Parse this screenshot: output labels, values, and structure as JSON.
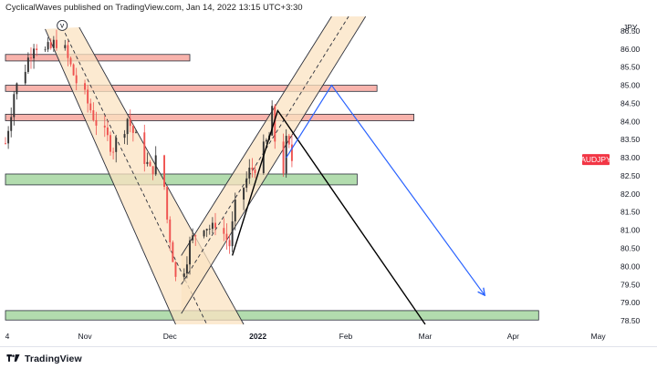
{
  "header": {
    "text": "CyclicalWaves published on TradingView.com, Jan 14, 2022 13:15 UTC+3:30"
  },
  "footer": {
    "brand": "TradingView"
  },
  "chart_data": {
    "type": "candlestick",
    "symbol": "AUDJPY",
    "currency": "JPY",
    "currency_scale_label": "JPY",
    "last_price": 82.95,
    "price_badge_color": "#f23645",
    "ylim": [
      78.3,
      86.9
    ],
    "y_ticks": [
      78.5,
      79.0,
      79.5,
      80.0,
      80.5,
      81.0,
      81.5,
      82.0,
      82.5,
      83.0,
      83.5,
      84.0,
      84.5,
      85.0,
      85.5,
      86.0,
      86.5
    ],
    "x_ticks": [
      {
        "label": "4",
        "date": "2021-10-04"
      },
      {
        "label": "Nov",
        "date": "2021-11-01"
      },
      {
        "label": "Dec",
        "date": "2021-12-01"
      },
      {
        "label": "2022",
        "date": "2022-01-01",
        "bold": true
      },
      {
        "label": "Feb",
        "date": "2022-02-01"
      },
      {
        "label": "Mar",
        "date": "2022-03-01"
      },
      {
        "label": "Apr",
        "date": "2022-04-01"
      },
      {
        "label": "May",
        "date": "2022-05-01"
      }
    ],
    "x_range": [
      "2021-10-04",
      "2022-05-05"
    ],
    "resistance_zones": [
      {
        "from": "2021-10-04",
        "to": "2021-12-08",
        "low": 85.67,
        "high": 85.85,
        "color": "#f7a69e"
      },
      {
        "from": "2021-10-04",
        "to": "2022-02-12",
        "low": 84.83,
        "high": 85.0,
        "color": "#f7a69e"
      },
      {
        "from": "2021-10-04",
        "to": "2022-02-25",
        "low": 84.02,
        "high": 84.2,
        "color": "#f7a69e"
      }
    ],
    "support_zones": [
      {
        "from": "2021-10-04",
        "to": "2022-02-05",
        "low": 82.25,
        "high": 82.55,
        "color": "#a5d6a0"
      },
      {
        "from": "2021-10-04",
        "to": "2022-04-10",
        "low": 78.52,
        "high": 78.78,
        "color": "#a5d6a0"
      }
    ],
    "channels": [
      {
        "fill": "#fbe3c2",
        "outer": [
          {
            "p1": [
              "2021-10-18",
              86.55
            ],
            "p2": [
              "2021-12-03",
              78.4
            ]
          },
          {
            "p1": [
              "2021-10-30",
              86.6
            ],
            "p2": [
              "2021-12-27",
              78.4
            ]
          }
        ],
        "mid": {
          "p1": [
            "2021-10-24",
            86.6
          ],
          "p2": [
            "2021-12-14",
            78.4
          ]
        }
      },
      {
        "fill": "#fbe3c2",
        "outer": [
          {
            "p1": [
              "2021-12-05",
              80.3
            ],
            "p2": [
              "2022-01-27",
              86.9
            ]
          },
          {
            "p1": [
              "2021-12-05",
              78.7
            ],
            "p2": [
              "2022-02-08",
              86.9
            ]
          }
        ],
        "mid": {
          "p1": [
            "2021-12-05",
            79.5
          ],
          "p2": [
            "2022-02-02",
            86.9
          ]
        }
      }
    ],
    "projections": [
      {
        "color": "#000000",
        "points": [
          [
            "2021-12-23",
            80.3
          ],
          [
            "2022-01-08",
            84.3
          ],
          [
            "2022-03-01",
            78.4
          ]
        ]
      },
      {
        "color": "#2962ff",
        "points": [
          [
            "2022-01-11",
            83.0
          ],
          [
            "2022-01-27",
            85.0
          ],
          [
            "2022-03-22",
            79.2
          ]
        ],
        "arrow": true
      }
    ],
    "markers": [
      {
        "label": "v",
        "date": "2021-10-24",
        "price": 86.65
      }
    ],
    "candles": {
      "up_color": "#333333",
      "down_color": "#ef5350",
      "anchors": [
        [
          "2021-10-04",
          83.4
        ],
        [
          "2021-10-07",
          84.8
        ],
        [
          "2021-10-11",
          85.5
        ],
        [
          "2021-10-14",
          86.2
        ],
        [
          "2021-10-18",
          85.9
        ],
        [
          "2021-10-20",
          86.0
        ],
        [
          "2021-10-23",
          86.35
        ],
        [
          "2021-10-26",
          85.7
        ],
        [
          "2021-10-29",
          85.1
        ],
        [
          "2021-11-02",
          84.5
        ],
        [
          "2021-11-05",
          84.0
        ],
        [
          "2021-11-08",
          83.6
        ],
        [
          "2021-11-11",
          83.3
        ],
        [
          "2021-11-14",
          83.7
        ],
        [
          "2021-11-16",
          84.1
        ],
        [
          "2021-11-19",
          83.5
        ],
        [
          "2021-11-22",
          83.0
        ],
        [
          "2021-11-24",
          82.6
        ],
        [
          "2021-11-26",
          82.9
        ],
        [
          "2021-11-28",
          82.8
        ],
        [
          "2021-11-29",
          82.2
        ],
        [
          "2021-11-30",
          81.3
        ],
        [
          "2021-12-02",
          80.3
        ],
        [
          "2021-12-04",
          79.0
        ],
        [
          "2021-12-06",
          80.0
        ],
        [
          "2021-12-08",
          80.6
        ],
        [
          "2021-12-10",
          80.9
        ],
        [
          "2021-12-13",
          81.2
        ],
        [
          "2021-12-16",
          81.0
        ],
        [
          "2021-12-18",
          81.5
        ],
        [
          "2021-12-20",
          80.9
        ],
        [
          "2021-12-22",
          80.6
        ],
        [
          "2021-12-24",
          81.6
        ],
        [
          "2021-12-27",
          82.2
        ],
        [
          "2021-12-29",
          82.6
        ],
        [
          "2022-01-01",
          82.9
        ],
        [
          "2022-01-03",
          83.2
        ],
        [
          "2022-01-05",
          83.6
        ],
        [
          "2022-01-06",
          84.2
        ],
        [
          "2022-01-07",
          83.5
        ],
        [
          "2022-01-08",
          83.0
        ],
        [
          "2022-01-10",
          82.7
        ],
        [
          "2022-01-11",
          83.4
        ],
        [
          "2022-01-12",
          83.2
        ],
        [
          "2022-01-13",
          82.95
        ]
      ]
    }
  }
}
